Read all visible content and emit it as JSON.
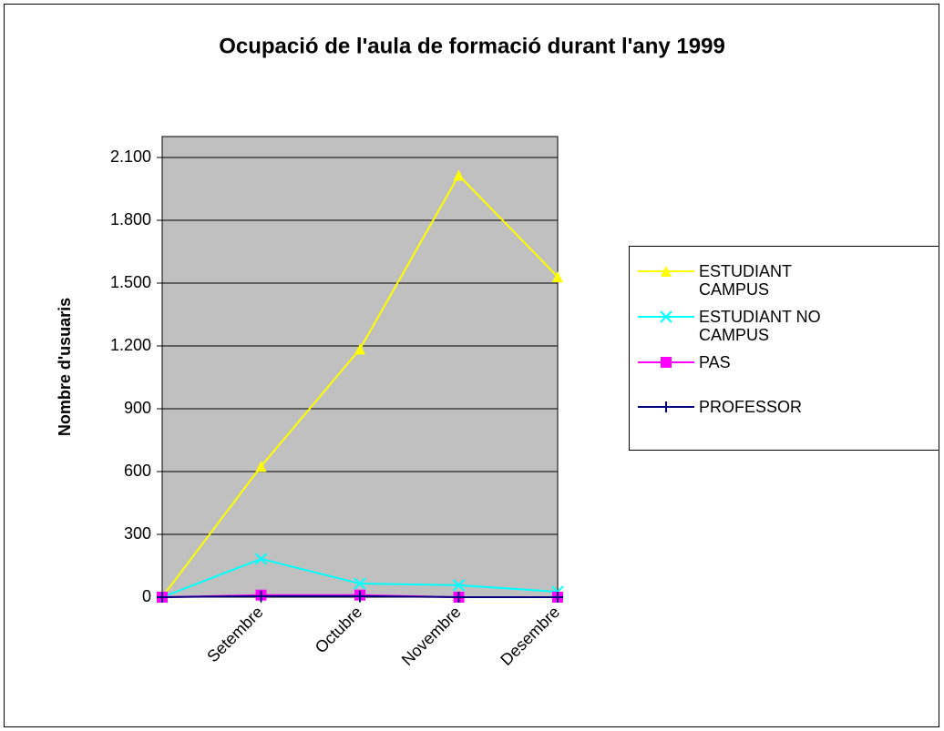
{
  "chart_data": {
    "type": "line",
    "title": "Ocupació de l'aula de formació durant l'any 1999",
    "y_label": "Nombre d'usuaris",
    "categories": [
      null,
      "Setembre",
      "Octubre",
      "Novembre",
      "Desembre"
    ],
    "series": [
      {
        "name": "ESTUDIANT CAMPUS",
        "color": "#ffff00",
        "marker": "triangle",
        "values": [
          0,
          625,
          1185,
          2015,
          1530
        ]
      },
      {
        "name": "ESTUDIANT NO CAMPUS",
        "color": "#00ffff",
        "marker": "x",
        "values": [
          0,
          183,
          65,
          57,
          26
        ]
      },
      {
        "name": "PAS",
        "color": "#ff00ff",
        "marker": "square",
        "values": [
          0,
          10,
          10,
          0,
          0
        ]
      },
      {
        "name": "PROFESSOR",
        "color": "#000080",
        "marker": "plus",
        "values": [
          0,
          5,
          5,
          0,
          0
        ]
      }
    ],
    "ylim": [
      0,
      2200
    ],
    "yticks": [
      0,
      300,
      600,
      900,
      {
        "value": 1200,
        "label": "1.200"
      },
      {
        "value": 1500,
        "label": "1.500"
      },
      {
        "value": 1800,
        "label": "1.800"
      },
      {
        "value": 2100,
        "label": "2.100"
      }
    ],
    "grid": true,
    "legend": "right"
  }
}
